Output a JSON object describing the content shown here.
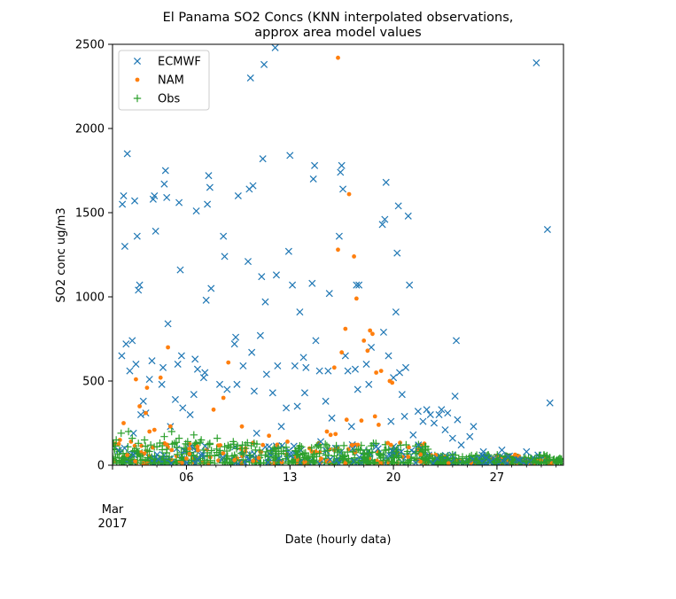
{
  "chart_data": {
    "type": "scatter",
    "title": [
      "El Panama SO2 Concs (KNN interpolated observations,",
      "approx area model values"
    ],
    "xlabel": "Date (hourly data)",
    "ylabel": "SO2 conc ug/m3",
    "xlim": [
      "2017-03-01",
      "2017-03-31T12:00"
    ],
    "ylim": [
      0,
      2500
    ],
    "x_ticks": [
      {
        "x": "2017-03-01",
        "label": "Mar",
        "label2": "2017"
      },
      {
        "x": "2017-03-06",
        "label": "06"
      },
      {
        "x": "2017-03-13",
        "label": "13"
      },
      {
        "x": "2017-03-20",
        "label": "20"
      },
      {
        "x": "2017-03-27",
        "label": "27"
      }
    ],
    "y_ticks": [
      0,
      500,
      1000,
      1500,
      2000,
      2500
    ],
    "grid": false,
    "legend": {
      "position": "top-left"
    },
    "series": [
      {
        "name": "ECMWF",
        "marker": "x",
        "color": "#1f77b4",
        "points": [
          [
            "2017-03-01T16:00",
            1550
          ],
          [
            "2017-03-01T18:00",
            1600
          ],
          [
            "2017-03-01T20:00",
            1300
          ],
          [
            "2017-03-02T00:00",
            1850
          ],
          [
            "2017-03-01T15:00",
            650
          ],
          [
            "2017-03-01T22:00",
            720
          ],
          [
            "2017-03-02T04:00",
            560
          ],
          [
            "2017-03-02T12:00",
            1570
          ],
          [
            "2017-03-02T16:00",
            1360
          ],
          [
            "2017-03-02T18:00",
            1040
          ],
          [
            "2017-03-02T20:00",
            1070
          ],
          [
            "2017-03-02T08:00",
            740
          ],
          [
            "2017-03-02T14:00",
            600
          ],
          [
            "2017-03-02T22:00",
            300
          ],
          [
            "2017-03-03T16:00",
            620
          ],
          [
            "2017-03-03T20:00",
            1600
          ],
          [
            "2017-03-03T22:00",
            1390
          ],
          [
            "2017-03-03T18:00",
            1580
          ],
          [
            "2017-03-03T12:00",
            510
          ],
          [
            "2017-03-04T08:00",
            480
          ],
          [
            "2017-03-04T10:00",
            580
          ],
          [
            "2017-03-04T12:00",
            1670
          ],
          [
            "2017-03-04T14:00",
            1750
          ],
          [
            "2017-03-04T16:00",
            1590
          ],
          [
            "2017-03-04T18:00",
            840
          ],
          [
            "2017-03-05T12:00",
            1560
          ],
          [
            "2017-03-05T14:00",
            1160
          ],
          [
            "2017-03-05T16:00",
            650
          ],
          [
            "2017-03-05T10:00",
            600
          ],
          [
            "2017-03-05T18:00",
            340
          ],
          [
            "2017-03-06T12:00",
            420
          ],
          [
            "2017-03-06T16:00",
            1510
          ],
          [
            "2017-03-06T14:00",
            630
          ],
          [
            "2017-03-06T18:00",
            570
          ],
          [
            "2017-03-07T12:00",
            1720
          ],
          [
            "2017-03-07T14:00",
            1650
          ],
          [
            "2017-03-07T10:00",
            1550
          ],
          [
            "2017-03-07T08:00",
            980
          ],
          [
            "2017-03-07T16:00",
            1050
          ],
          [
            "2017-03-07T06:00",
            550
          ],
          [
            "2017-03-07T04:00",
            520
          ],
          [
            "2017-03-08T12:00",
            1360
          ],
          [
            "2017-03-08T14:00",
            1240
          ],
          [
            "2017-03-08T06:00",
            480
          ],
          [
            "2017-03-09T08:00",
            760
          ],
          [
            "2017-03-09T12:00",
            1600
          ],
          [
            "2017-03-09T06:00",
            720
          ],
          [
            "2017-03-09T10:00",
            480
          ],
          [
            "2017-03-10T08:00",
            2300
          ],
          [
            "2017-03-10T06:00",
            1640
          ],
          [
            "2017-03-10T12:00",
            1660
          ],
          [
            "2017-03-10T04:00",
            1210
          ],
          [
            "2017-03-10T10:00",
            670
          ],
          [
            "2017-03-10T14:00",
            440
          ],
          [
            "2017-03-11T06:00",
            2380
          ],
          [
            "2017-03-11T04:00",
            1820
          ],
          [
            "2017-03-11T02:00",
            1120
          ],
          [
            "2017-03-11T08:00",
            970
          ],
          [
            "2017-03-11T00:00",
            770
          ],
          [
            "2017-03-11T10:00",
            540
          ],
          [
            "2017-03-12T00:00",
            2480
          ],
          [
            "2017-03-12T02:00",
            1130
          ],
          [
            "2017-03-12T04:00",
            590
          ],
          [
            "2017-03-11T20:00",
            430
          ],
          [
            "2017-03-13T00:00",
            1840
          ],
          [
            "2017-03-12T22:00",
            1270
          ],
          [
            "2017-03-13T04:00",
            1070
          ],
          [
            "2017-03-13T08:00",
            590
          ],
          [
            "2017-03-12T18:00",
            340
          ],
          [
            "2017-03-13T16:00",
            910
          ],
          [
            "2017-03-13T22:00",
            640
          ],
          [
            "2017-03-14T02:00",
            580
          ],
          [
            "2017-03-14T00:00",
            430
          ],
          [
            "2017-03-14T16:00",
            1780
          ],
          [
            "2017-03-14T14:00",
            1700
          ],
          [
            "2017-03-14T12:00",
            1080
          ],
          [
            "2017-03-14T18:00",
            740
          ],
          [
            "2017-03-15T00:00",
            560
          ],
          [
            "2017-03-15T16:00",
            1020
          ],
          [
            "2017-03-15T14:00",
            560
          ],
          [
            "2017-03-15T10:00",
            380
          ],
          [
            "2017-03-16T12:00",
            1780
          ],
          [
            "2017-03-16T10:00",
            1740
          ],
          [
            "2017-03-16T14:00",
            1640
          ],
          [
            "2017-03-16T08:00",
            1360
          ],
          [
            "2017-03-16T18:00",
            650
          ],
          [
            "2017-03-16T22:00",
            560
          ],
          [
            "2017-03-17T12:00",
            1070
          ],
          [
            "2017-03-17T16:00",
            1070
          ],
          [
            "2017-03-17T10:00",
            570
          ],
          [
            "2017-03-17T14:00",
            450
          ],
          [
            "2017-03-18T04:00",
            600
          ],
          [
            "2017-03-18T12:00",
            700
          ],
          [
            "2017-03-18T08:00",
            480
          ],
          [
            "2017-03-19T12:00",
            1680
          ],
          [
            "2017-03-19T10:00",
            1460
          ],
          [
            "2017-03-19T06:00",
            1430
          ],
          [
            "2017-03-19T08:00",
            790
          ],
          [
            "2017-03-19T16:00",
            650
          ],
          [
            "2017-03-20T00:00",
            520
          ],
          [
            "2017-03-20T08:00",
            1540
          ],
          [
            "2017-03-20T06:00",
            1260
          ],
          [
            "2017-03-20T04:00",
            910
          ],
          [
            "2017-03-20T10:00",
            550
          ],
          [
            "2017-03-20T14:00",
            420
          ],
          [
            "2017-03-21T00:00",
            1480
          ],
          [
            "2017-03-21T02:00",
            1070
          ],
          [
            "2017-03-20T20:00",
            580
          ],
          [
            "2017-03-21T16:00",
            320
          ],
          [
            "2017-03-22T00:00",
            260
          ],
          [
            "2017-03-22T12:00",
            300
          ],
          [
            "2017-03-23T06:00",
            330
          ],
          [
            "2017-03-23T16:00",
            310
          ],
          [
            "2017-03-24T06:00",
            740
          ],
          [
            "2017-03-24T04:00",
            410
          ],
          [
            "2017-03-24T08:00",
            270
          ],
          [
            "2017-03-25T10:00",
            230
          ],
          [
            "2017-03-26T02:00",
            80
          ],
          [
            "2017-03-27T08:00",
            90
          ],
          [
            "2017-03-29T16:00",
            2390
          ],
          [
            "2017-03-30T10:00",
            1400
          ],
          [
            "2017-03-30T14:00",
            370
          ],
          [
            "2017-03-29T00:00",
            80
          ],
          [
            "2017-03-03T06:00",
            310
          ],
          [
            "2017-03-03T02:00",
            380
          ],
          [
            "2017-03-02T10:00",
            190
          ],
          [
            "2017-03-04T22:00",
            230
          ],
          [
            "2017-03-05T06:00",
            390
          ],
          [
            "2017-03-06T06:00",
            300
          ],
          [
            "2017-03-08T18:00",
            450
          ],
          [
            "2017-03-09T20:00",
            590
          ],
          [
            "2017-03-10T18:00",
            190
          ],
          [
            "2017-03-11T14:00",
            110
          ],
          [
            "2017-03-12T10:00",
            230
          ],
          [
            "2017-03-13T12:00",
            350
          ],
          [
            "2017-03-15T02:00",
            140
          ],
          [
            "2017-03-15T20:00",
            280
          ],
          [
            "2017-03-17T04:00",
            230
          ],
          [
            "2017-03-18T20:00",
            110
          ],
          [
            "2017-03-19T20:00",
            260
          ],
          [
            "2017-03-20T18:00",
            290
          ],
          [
            "2017-03-21T08:00",
            180
          ],
          [
            "2017-03-22T06:00",
            330
          ],
          [
            "2017-03-22T18:00",
            250
          ],
          [
            "2017-03-23T02:00",
            300
          ],
          [
            "2017-03-23T12:00",
            210
          ],
          [
            "2017-03-24T00:00",
            160
          ],
          [
            "2017-03-24T14:00",
            120
          ],
          [
            "2017-03-25T04:00",
            170
          ],
          [
            "2017-03-26T00:00",
            60
          ],
          [
            "2017-03-26T18:00",
            40
          ],
          [
            "2017-03-27T18:00",
            50
          ],
          [
            "2017-03-28T12:00",
            30
          ],
          [
            "2017-03-12T06:00",
            40
          ],
          [
            "2017-03-16T04:00",
            30
          ]
        ]
      },
      {
        "name": "NAM",
        "marker": ".",
        "color": "#ff7f0e",
        "points": [
          [
            "2017-03-16T06:00",
            2420
          ],
          [
            "2017-03-17T00:00",
            1610
          ],
          [
            "2017-03-16T06:00",
            1280
          ],
          [
            "2017-03-17T08:00",
            1240
          ],
          [
            "2017-03-17T12:00",
            990
          ],
          [
            "2017-03-16T18:00",
            810
          ],
          [
            "2017-03-18T10:00",
            800
          ],
          [
            "2017-03-18T14:00",
            780
          ],
          [
            "2017-03-18T00:00",
            740
          ],
          [
            "2017-03-04T18:00",
            700
          ],
          [
            "2017-03-18T06:00",
            680
          ],
          [
            "2017-03-16T12:00",
            670
          ],
          [
            "2017-03-08T20:00",
            610
          ],
          [
            "2017-03-16T00:00",
            580
          ],
          [
            "2017-03-19T04:00",
            560
          ],
          [
            "2017-03-18T20:00",
            550
          ],
          [
            "2017-03-04T06:00",
            520
          ],
          [
            "2017-03-02T14:00",
            510
          ],
          [
            "2017-03-19T18:00",
            500
          ],
          [
            "2017-03-19T22:00",
            490
          ],
          [
            "2017-03-03T08:00",
            460
          ],
          [
            "2017-03-08T12:00",
            400
          ],
          [
            "2017-03-02T20:00",
            350
          ],
          [
            "2017-03-07T20:00",
            330
          ],
          [
            "2017-03-03T06:00",
            310
          ],
          [
            "2017-03-18T18:00",
            290
          ],
          [
            "2017-03-16T20:00",
            270
          ],
          [
            "2017-03-17T20:00",
            265
          ],
          [
            "2017-03-01T18:00",
            250
          ],
          [
            "2017-03-19T00:00",
            240
          ],
          [
            "2017-03-04T22:00",
            230
          ],
          [
            "2017-03-09T18:00",
            230
          ],
          [
            "2017-03-03T20:00",
            210
          ],
          [
            "2017-03-03T12:00",
            200
          ],
          [
            "2017-03-15T12:00",
            200
          ],
          [
            "2017-03-16T02:00",
            185
          ],
          [
            "2017-03-15T18:00",
            180
          ],
          [
            "2017-03-11T14:00",
            175
          ],
          [
            "2017-03-01T12:00",
            150
          ],
          [
            "2017-03-02T06:00",
            140
          ],
          [
            "2017-03-12T20:00",
            140
          ],
          [
            "2017-03-19T20:00",
            120
          ],
          [
            "2017-03-11T04:00",
            120
          ],
          [
            "2017-03-06T18:00",
            110
          ],
          [
            "2017-03-10T00:00",
            100
          ],
          [
            "2017-03-05T00:00",
            90
          ],
          [
            "2017-03-02T00:00",
            60
          ],
          [
            "2017-03-06T00:00",
            40
          ],
          [
            "2017-03-09T06:00",
            30
          ],
          [
            "2017-03-14T00:00",
            20
          ],
          [
            "2017-03-21T00:00",
            50
          ]
        ]
      },
      {
        "name": "Obs",
        "marker": "+",
        "color": "#2ca02c",
        "points": [
          [
            "2017-03-01T06:00",
            150
          ],
          [
            "2017-03-01T14:00",
            190
          ],
          [
            "2017-03-02T02:00",
            200
          ],
          [
            "2017-03-02T08:00",
            160
          ],
          [
            "2017-03-02T18:00",
            130
          ],
          [
            "2017-03-03T04:00",
            150
          ],
          [
            "2017-03-03T14:00",
            120
          ],
          [
            "2017-03-04T00:00",
            110
          ],
          [
            "2017-03-04T12:00",
            170
          ],
          [
            "2017-03-05T00:00",
            200
          ],
          [
            "2017-03-05T12:00",
            160
          ],
          [
            "2017-03-06T02:00",
            140
          ],
          [
            "2017-03-06T12:00",
            180
          ],
          [
            "2017-03-07T00:00",
            150
          ],
          [
            "2017-03-07T14:00",
            130
          ],
          [
            "2017-03-08T02:00",
            160
          ],
          [
            "2017-03-08T14:00",
            110
          ],
          [
            "2017-03-09T04:00",
            140
          ],
          [
            "2017-03-10T00:00",
            100
          ],
          [
            "2017-03-10T16:00",
            90
          ],
          [
            "2017-03-11T10:00",
            80
          ],
          [
            "2017-03-12T06:00",
            70
          ],
          [
            "2017-03-13T12:00",
            60
          ],
          [
            "2017-03-15T00:00",
            70
          ],
          [
            "2017-03-16T08:00",
            90
          ],
          [
            "2017-03-17T06:00",
            80
          ],
          [
            "2017-03-18T08:00",
            70
          ],
          [
            "2017-03-19T12:00",
            90
          ],
          [
            "2017-03-20T04:00",
            80
          ],
          [
            "2017-03-21T12:00",
            70
          ],
          [
            "2017-03-22T10:00",
            60
          ],
          [
            "2017-03-23T08:00",
            50
          ],
          [
            "2017-03-24T10:00",
            40
          ],
          [
            "2017-03-25T12:00",
            30
          ],
          [
            "2017-03-27T00:00",
            30
          ],
          [
            "2017-03-28T00:00",
            25
          ],
          [
            "2017-03-29T00:00",
            25
          ],
          [
            "2017-03-30T00:00",
            20
          ],
          [
            "2017-03-31T00:00",
            25
          ],
          [
            "2017-03-12T00:00",
            50
          ],
          [
            "2017-03-14T00:00",
            45
          ],
          [
            "2017-03-16T00:00",
            55
          ],
          [
            "2017-03-18T00:00",
            50
          ],
          [
            "2017-03-20T00:00",
            45
          ],
          [
            "2017-03-22T00:00",
            40
          ]
        ]
      }
    ]
  }
}
